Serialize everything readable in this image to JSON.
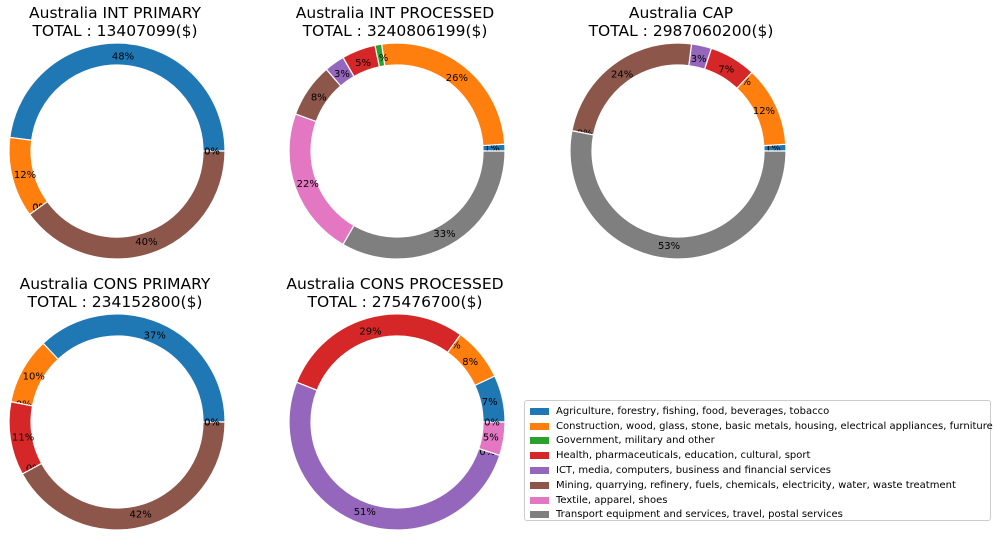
{
  "legend": {
    "position": "lower-right",
    "items": [
      {
        "label": "Agriculture, forestry, fishing, food, beverages, tobacco",
        "color": "#1f77b4"
      },
      {
        "label": "Construction, wood, glass, stone, basic metals, housing, electrical appliances, furniture",
        "color": "#ff7f0e"
      },
      {
        "label": "Government, military and other",
        "color": "#2ca02c"
      },
      {
        "label": "Health, pharmaceuticals, education, cultural, sport",
        "color": "#d62728"
      },
      {
        "label": "ICT, media, computers, business and financial services",
        "color": "#9467bd"
      },
      {
        "label": "Mining, quarrying, refinery, fuels, chemicals, electricity, water, waste treatment",
        "color": "#8c564b"
      },
      {
        "label": "Textile, apparel, shoes",
        "color": "#e377c2"
      },
      {
        "label": "Transport equipment and services, travel, postal services",
        "color": "#7f7f7f"
      }
    ]
  },
  "chart_data": [
    {
      "type": "pie",
      "title": "Australia INT PRIMARY",
      "subtitle": "TOTAL : 13407099($)",
      "slices": [
        {
          "cat": 0,
          "value": 48,
          "label": "48%"
        },
        {
          "cat": 1,
          "value": 12,
          "label": "12%"
        },
        {
          "cat": 2,
          "value": 0,
          "label": "0%"
        },
        {
          "cat": 3,
          "value": 0,
          "label": "0%"
        },
        {
          "cat": 4,
          "value": 0,
          "label": "0%"
        },
        {
          "cat": 5,
          "value": 40,
          "label": "40%"
        },
        {
          "cat": 6,
          "value": 0,
          "label": "0%"
        },
        {
          "cat": 7,
          "value": 0,
          "label": "0%"
        }
      ]
    },
    {
      "type": "pie",
      "title": "Australia INT PROCESSED",
      "subtitle": "TOTAL : 3240806199($)",
      "slices": [
        {
          "cat": 0,
          "value": 1,
          "label": "1%"
        },
        {
          "cat": 1,
          "value": 26,
          "label": "26%"
        },
        {
          "cat": 2,
          "value": 1,
          "label": "1%"
        },
        {
          "cat": 3,
          "value": 5,
          "label": "5%"
        },
        {
          "cat": 4,
          "value": 3,
          "label": "3%"
        },
        {
          "cat": 5,
          "value": 8,
          "label": "8%"
        },
        {
          "cat": 6,
          "value": 22,
          "label": "22%"
        },
        {
          "cat": 7,
          "value": 33,
          "label": "33%"
        }
      ]
    },
    {
      "type": "pie",
      "title": "Australia CAP",
      "subtitle": "TOTAL : 2987060200($)",
      "slices": [
        {
          "cat": 0,
          "value": 1,
          "label": "1%"
        },
        {
          "cat": 1,
          "value": 12,
          "label": "12%"
        },
        {
          "cat": 2,
          "value": 0,
          "label": "0%"
        },
        {
          "cat": 3,
          "value": 7,
          "label": "7%"
        },
        {
          "cat": 4,
          "value": 3,
          "label": "3%"
        },
        {
          "cat": 5,
          "value": 24,
          "label": "24%"
        },
        {
          "cat": 6,
          "value": 0,
          "label": "0%"
        },
        {
          "cat": 7,
          "value": 53,
          "label": "53%"
        }
      ]
    },
    {
      "type": "pie",
      "title": "Australia CONS PRIMARY",
      "subtitle": "TOTAL : 234152800($)",
      "slices": [
        {
          "cat": 0,
          "value": 37,
          "label": "37%"
        },
        {
          "cat": 1,
          "value": 10,
          "label": "10%"
        },
        {
          "cat": 2,
          "value": 0,
          "label": "0%"
        },
        {
          "cat": 3,
          "value": 11,
          "label": "11%"
        },
        {
          "cat": 4,
          "value": 0,
          "label": "0%"
        },
        {
          "cat": 5,
          "value": 42,
          "label": "42%"
        },
        {
          "cat": 6,
          "value": 0,
          "label": "0%"
        },
        {
          "cat": 7,
          "value": 0,
          "label": "0%"
        }
      ]
    },
    {
      "type": "pie",
      "title": "Australia CONS PROCESSED",
      "subtitle": "TOTAL : 275476700($)",
      "slices": [
        {
          "cat": 0,
          "value": 7,
          "label": "7%"
        },
        {
          "cat": 1,
          "value": 8,
          "label": "8%"
        },
        {
          "cat": 2,
          "value": 0,
          "label": "0%"
        },
        {
          "cat": 3,
          "value": 29,
          "label": "29%"
        },
        {
          "cat": 4,
          "value": 51,
          "label": "51%"
        },
        {
          "cat": 5,
          "value": 0,
          "label": "0%"
        },
        {
          "cat": 6,
          "value": 5,
          "label": "5%"
        },
        {
          "cat": 7,
          "value": 0,
          "label": "0%"
        }
      ]
    }
  ]
}
